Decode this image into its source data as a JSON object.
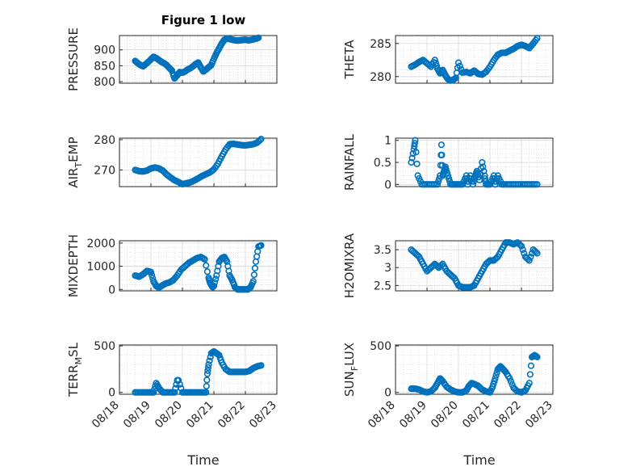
{
  "figure": {
    "title": "Figure 1 low",
    "xlabel": "Time",
    "date_ticks": [
      "08/18",
      "08/19",
      "08/20",
      "08/21",
      "08/22",
      "08/23"
    ],
    "marker_color": "#0072bd"
  },
  "chart_data": [
    {
      "type": "scatter",
      "name": "PRESSURE",
      "ylabel": "PRESSURE",
      "xlim": [
        "08/18",
        "08/23"
      ],
      "ylim": [
        795,
        945
      ],
      "yticks": [
        "800",
        "850",
        "900"
      ],
      "ytick_values": [
        800,
        850,
        900
      ],
      "x": [
        "08/18 12:00",
        "08/18 14:00",
        "08/18 16:00",
        "08/18 18:00",
        "08/18 20:00",
        "08/18 22:00",
        "08/19 00:00",
        "08/19 02:00",
        "08/19 04:00",
        "08/19 06:00",
        "08/19 08:00",
        "08/19 10:00",
        "08/19 12:00",
        "08/19 14:00",
        "08/19 16:00",
        "08/19 18:00",
        "08/19 20:00",
        "08/19 22:00",
        "08/20 00:00",
        "08/20 02:00",
        "08/20 04:00",
        "08/20 06:00",
        "08/20 08:00",
        "08/20 10:00",
        "08/20 12:00",
        "08/20 14:00",
        "08/20 16:00",
        "08/20 18:00",
        "08/20 20:00",
        "08/20 22:00",
        "08/21 00:00",
        "08/21 02:00",
        "08/21 04:00",
        "08/21 06:00",
        "08/21 08:00",
        "08/21 10:00",
        "08/21 12:00",
        "08/21 14:00",
        "08/21 16:00",
        "08/21 18:00",
        "08/21 20:00",
        "08/21 22:00",
        "08/22 00:00",
        "08/22 02:00",
        "08/22 04:00",
        "08/22 06:00",
        "08/22 08:00",
        "08/22 10:00"
      ],
      "y": [
        865,
        858,
        852,
        848,
        855,
        862,
        870,
        878,
        874,
        868,
        862,
        858,
        852,
        843,
        835,
        810,
        820,
        830,
        828,
        832,
        838,
        842,
        848,
        855,
        860,
        845,
        832,
        838,
        845,
        852,
        872,
        890,
        905,
        920,
        932,
        935,
        934,
        932,
        930,
        929,
        930,
        931,
        932,
        930,
        931,
        933,
        935,
        938
      ]
    },
    {
      "type": "scatter",
      "name": "THETA",
      "ylabel": "THETA",
      "xlim": [
        "08/18",
        "08/23"
      ],
      "ylim": [
        279,
        286.2
      ],
      "yticks": [
        "280",
        "285"
      ],
      "ytick_values": [
        280,
        285
      ],
      "x": [
        "08/18 12:00",
        "08/18 15:00",
        "08/18 18:00",
        "08/18 21:00",
        "08/19 00:00",
        "08/19 03:00",
        "08/19 06:00",
        "08/19 08:00",
        "08/19 10:00",
        "08/19 12:00",
        "08/19 14:00",
        "08/19 16:00",
        "08/19 18:00",
        "08/19 20:00",
        "08/19 22:00",
        "08/20 00:00",
        "08/20 03:00",
        "08/20 06:00",
        "08/20 09:00",
        "08/20 12:00",
        "08/20 15:00",
        "08/20 18:00",
        "08/20 21:00",
        "08/21 00:00",
        "08/21 03:00",
        "08/21 06:00",
        "08/21 09:00",
        "08/21 12:00",
        "08/21 15:00",
        "08/21 18:00",
        "08/21 21:00",
        "08/22 00:00",
        "08/22 03:00",
        "08/22 06:00",
        "08/22 09:00",
        "08/22 12:00"
      ],
      "y": [
        281.5,
        281.8,
        282.2,
        282.5,
        282.0,
        281.5,
        282.5,
        281.2,
        280.5,
        281.0,
        280.2,
        279.6,
        279.4,
        279.5,
        279.8,
        282.1,
        280.6,
        280.7,
        280.5,
        280.9,
        280.4,
        280.3,
        280.7,
        281.5,
        282.5,
        283.3,
        283.6,
        283.6,
        283.9,
        284.2,
        284.6,
        284.8,
        284.6,
        284.3,
        285.0,
        285.8
      ]
    },
    {
      "type": "scatter",
      "name": "AIR_TEMP",
      "ylabel": "AIR_TEMP",
      "xlim": [
        "08/18",
        "08/23"
      ],
      "ylim": [
        264.5,
        280.5
      ],
      "yticks": [
        "270",
        "280"
      ],
      "ytick_values": [
        270,
        280
      ],
      "x": [
        "08/18 12:00",
        "08/18 15:00",
        "08/18 18:00",
        "08/18 21:00",
        "08/19 00:00",
        "08/19 03:00",
        "08/19 06:00",
        "08/19 09:00",
        "08/19 12:00",
        "08/19 15:00",
        "08/19 18:00",
        "08/19 21:00",
        "08/20 00:00",
        "08/20 03:00",
        "08/20 06:00",
        "08/20 09:00",
        "08/20 12:00",
        "08/20 15:00",
        "08/20 18:00",
        "08/20 21:00",
        "08/21 00:00",
        "08/21 03:00",
        "08/21 06:00",
        "08/21 09:00",
        "08/21 12:00",
        "08/21 15:00",
        "08/21 18:00",
        "08/21 21:00",
        "08/22 00:00",
        "08/22 03:00",
        "08/22 06:00",
        "08/22 09:00",
        "08/22 12:00"
      ],
      "y": [
        270.0,
        269.6,
        269.5,
        269.8,
        270.5,
        270.8,
        270.5,
        269.8,
        268.5,
        267.5,
        266.6,
        266.0,
        265.3,
        265.6,
        265.9,
        266.5,
        267.2,
        268.0,
        268.6,
        269.2,
        270.2,
        272.0,
        274.5,
        276.8,
        278.5,
        278.6,
        278.4,
        278.2,
        278.1,
        278.3,
        278.5,
        279.0,
        280.2
      ]
    },
    {
      "type": "scatter",
      "name": "RAINFALL",
      "ylabel": "RAINFALL",
      "xlim": [
        "08/18",
        "08/23"
      ],
      "ylim": [
        -0.05,
        1.05
      ],
      "yticks": [
        "0",
        "0.5",
        "1"
      ],
      "ytick_values": [
        0,
        0.5,
        1
      ],
      "x": [
        "08/18 12:00",
        "08/18 14:00",
        "08/18 15:00",
        "08/18 17:00",
        "08/18 20:00",
        "08/19 00:00",
        "08/19 04:00",
        "08/19 08:00",
        "08/19 10:00",
        "08/19 11:00",
        "08/19 12:00",
        "08/19 13:00",
        "08/19 14:00",
        "08/19 16:00",
        "08/19 18:00",
        "08/19 21:00",
        "08/20 00:00",
        "08/20 03:00",
        "08/20 06:00",
        "08/20 07:00",
        "08/20 09:00",
        "08/20 11:00",
        "08/20 13:00",
        "08/20 14:00",
        "08/20 16:00",
        "08/20 18:00",
        "08/20 20:00",
        "08/20 21:00",
        "08/21 00:00",
        "08/21 03:00",
        "08/21 04:00",
        "08/21 06:00",
        "08/21 09:00",
        "08/21 12:00",
        "08/21 16:00",
        "08/21 20:00",
        "08/22 00:00",
        "08/22 04:00",
        "08/22 08:00",
        "08/22 12:00"
      ],
      "y": [
        0.5,
        0.8,
        1.0,
        0.2,
        0,
        0,
        0,
        0,
        0.2,
        0.9,
        0.2,
        0.3,
        0.4,
        0.2,
        0,
        0,
        0,
        0,
        0.2,
        0,
        0.2,
        0,
        0.2,
        0.3,
        0.1,
        0.5,
        0.2,
        0,
        0,
        0.2,
        0,
        0.2,
        0,
        0,
        0,
        0,
        0,
        0,
        0,
        0
      ]
    },
    {
      "type": "scatter",
      "name": "MIXDEPTH",
      "ylabel": "MIXDEPTH",
      "xlim": [
        "08/18",
        "08/23"
      ],
      "ylim": [
        -60,
        2100
      ],
      "yticks": [
        "0",
        "1000",
        "2000"
      ],
      "ytick_values": [
        0,
        1000,
        2000
      ],
      "x": [
        "08/18 12:00",
        "08/18 15:00",
        "08/18 18:00",
        "08/18 21:00",
        "08/19 00:00",
        "08/19 02:00",
        "08/19 04:00",
        "08/19 06:00",
        "08/19 08:00",
        "08/19 11:00",
        "08/19 14:00",
        "08/19 17:00",
        "08/19 20:00",
        "08/19 23:00",
        "08/20 02:00",
        "08/20 05:00",
        "08/20 08:00",
        "08/20 11:00",
        "08/20 14:00",
        "08/20 17:00",
        "08/20 20:00",
        "08/20 21:00",
        "08/20 22:00",
        "08/20 23:00",
        "08/21 00:00",
        "08/21 02:00",
        "08/21 04:00",
        "08/21 06:00",
        "08/21 08:00",
        "08/21 10:00",
        "08/21 12:00",
        "08/21 14:00",
        "08/21 16:00",
        "08/21 18:00",
        "08/21 20:00",
        "08/21 22:00",
        "08/22 00:00",
        "08/22 02:00",
        "08/22 04:00",
        "08/22 06:00",
        "08/22 08:00",
        "08/22 10:00",
        "08/22 12:00"
      ],
      "y": [
        600,
        550,
        650,
        800,
        750,
        350,
        150,
        80,
        150,
        250,
        300,
        400,
        600,
        850,
        1000,
        1150,
        1250,
        1350,
        1400,
        1300,
        500,
        300,
        200,
        100,
        150,
        600,
        1200,
        1350,
        1400,
        1200,
        600,
        400,
        100,
        0,
        0,
        0,
        0,
        0,
        100,
        350,
        1200,
        1850,
        1900
      ]
    },
    {
      "type": "scatter",
      "name": "H2OMIXRA",
      "ylabel": "H2OMIXRA",
      "xlim": [
        "08/18",
        "08/23"
      ],
      "ylim": [
        2.35,
        3.75
      ],
      "yticks": [
        "2.5",
        "3",
        "3.5"
      ],
      "ytick_values": [
        2.5,
        3,
        3.5
      ],
      "x": [
        "08/18 12:00",
        "08/18 15:00",
        "08/18 18:00",
        "08/18 21:00",
        "08/19 00:00",
        "08/19 03:00",
        "08/19 06:00",
        "08/19 09:00",
        "08/19 12:00",
        "08/19 15:00",
        "08/19 18:00",
        "08/19 21:00",
        "08/20 00:00",
        "08/20 03:00",
        "08/20 06:00",
        "08/20 09:00",
        "08/20 12:00",
        "08/20 15:00",
        "08/20 18:00",
        "08/20 21:00",
        "08/21 00:00",
        "08/21 03:00",
        "08/21 06:00",
        "08/21 09:00",
        "08/21 12:00",
        "08/21 15:00",
        "08/21 18:00",
        "08/21 21:00",
        "08/22 00:00",
        "08/22 03:00",
        "08/22 06:00",
        "08/22 09:00",
        "08/22 12:00"
      ],
      "y": [
        3.5,
        3.4,
        3.3,
        3.1,
        2.9,
        3.0,
        3.1,
        3.0,
        3.1,
        2.9,
        2.8,
        2.7,
        2.5,
        2.45,
        2.45,
        2.45,
        2.5,
        2.7,
        2.9,
        3.1,
        3.2,
        3.2,
        3.3,
        3.5,
        3.7,
        3.7,
        3.65,
        3.7,
        3.6,
        3.3,
        3.2,
        3.5,
        3.4
      ]
    },
    {
      "type": "scatter",
      "name": "TERR_MSL",
      "ylabel": "TERR_MSL",
      "xlim": [
        "08/18",
        "08/23"
      ],
      "ylim": [
        -20,
        510
      ],
      "yticks": [
        "0",
        "500"
      ],
      "ytick_values": [
        0,
        500
      ],
      "x": [
        "08/18 12:00",
        "08/18 15:00",
        "08/18 18:00",
        "08/18 21:00",
        "08/19 00:00",
        "08/19 02:00",
        "08/19 04:00",
        "08/19 06:00",
        "08/19 09:00",
        "08/19 12:00",
        "08/19 15:00",
        "08/19 18:00",
        "08/19 20:00",
        "08/19 21:00",
        "08/20 00:00",
        "08/20 03:00",
        "08/20 06:00",
        "08/20 09:00",
        "08/20 12:00",
        "08/20 15:00",
        "08/20 18:00",
        "08/20 19:00",
        "08/20 20:00",
        "08/20 22:00",
        "08/21 00:00",
        "08/21 02:00",
        "08/21 04:00",
        "08/21 06:00",
        "08/21 09:00",
        "08/21 12:00",
        "08/21 15:00",
        "08/21 18:00",
        "08/21 21:00",
        "08/22 00:00",
        "08/22 03:00",
        "08/22 06:00",
        "08/22 09:00",
        "08/22 12:00"
      ],
      "y": [
        0,
        0,
        0,
        0,
        0,
        0,
        100,
        50,
        0,
        0,
        0,
        0,
        130,
        130,
        0,
        0,
        0,
        0,
        0,
        0,
        0,
        200,
        300,
        420,
        440,
        420,
        400,
        320,
        250,
        220,
        220,
        220,
        220,
        220,
        230,
        260,
        280,
        290
      ]
    },
    {
      "type": "scatter",
      "name": "SUN_FLUX",
      "ylabel": "SUN_FLUX",
      "xlim": [
        "08/18",
        "08/23"
      ],
      "ylim": [
        -20,
        510
      ],
      "yticks": [
        "0",
        "500"
      ],
      "ytick_values": [
        0,
        500
      ],
      "x": [
        "08/18 12:00",
        "08/18 15:00",
        "08/18 18:00",
        "08/18 21:00",
        "08/19 00:00",
        "08/19 03:00",
        "08/19 06:00",
        "08/19 08:00",
        "08/19 10:00",
        "08/19 12:00",
        "08/19 15:00",
        "08/19 18:00",
        "08/19 21:00",
        "08/20 00:00",
        "08/20 03:00",
        "08/20 06:00",
        "08/20 08:00",
        "08/20 10:00",
        "08/20 12:00",
        "08/20 15:00",
        "08/20 18:00",
        "08/20 21:00",
        "08/21 00:00",
        "08/21 02:00",
        "08/21 04:00",
        "08/21 06:00",
        "08/21 08:00",
        "08/21 10:00",
        "08/21 12:00",
        "08/21 15:00",
        "08/21 18:00",
        "08/21 21:00",
        "08/22 00:00",
        "08/22 03:00",
        "08/22 06:00",
        "08/22 08:00",
        "08/22 10:00",
        "08/22 12:00"
      ],
      "y": [
        40,
        40,
        30,
        10,
        0,
        10,
        50,
        100,
        150,
        120,
        60,
        30,
        10,
        0,
        0,
        20,
        70,
        100,
        90,
        70,
        30,
        10,
        0,
        60,
        150,
        250,
        280,
        250,
        220,
        150,
        50,
        10,
        0,
        20,
        100,
        380,
        400,
        380
      ]
    }
  ]
}
